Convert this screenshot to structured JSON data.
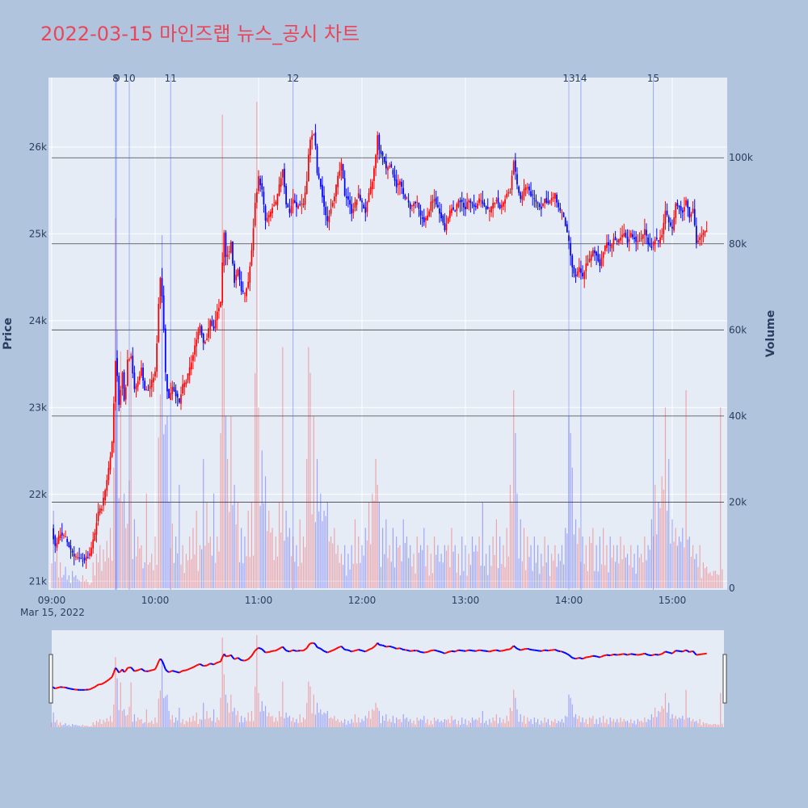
{
  "chart_data": {
    "type": "candlestick",
    "title": "2022-03-15 마인즈랩 뉴스_공시 차트",
    "y_axis_left": {
      "title": "Price",
      "ticks": [
        21000,
        22000,
        23000,
        24000,
        25000,
        26000
      ],
      "tick_labels": [
        "21k",
        "22k",
        "23k",
        "24k",
        "25k",
        "26k"
      ],
      "range": [
        20900,
        26800
      ]
    },
    "y_axis_right": {
      "title": "Volume",
      "ticks": [
        0,
        20000,
        40000,
        60000,
        80000,
        100000
      ],
      "tick_labels": [
        "0",
        "20k",
        "40k",
        "60k",
        "80k",
        "100k"
      ],
      "range": [
        0,
        119000
      ]
    },
    "x_axis": {
      "ticks": [
        "09:00",
        "10:00",
        "11:00",
        "12:00",
        "13:00",
        "14:00",
        "15:00"
      ],
      "tick_minutes": [
        0,
        60,
        120,
        180,
        240,
        300,
        360
      ],
      "date_label": "Mar 15, 2022",
      "range_minutes": [
        0,
        390
      ]
    },
    "news_markers": [
      {
        "label": "8",
        "minute": 37
      },
      {
        "label": "9",
        "minute": 37.5
      },
      {
        "label": "10",
        "minute": 45
      },
      {
        "label": "11",
        "minute": 69
      },
      {
        "label": "12",
        "minute": 140
      },
      {
        "label": "13",
        "minute": 300
      },
      {
        "label": "14",
        "minute": 307
      },
      {
        "label": "15",
        "minute": 349
      }
    ],
    "price_path": [
      [
        0,
        21600
      ],
      [
        2,
        21400
      ],
      [
        5,
        21550
      ],
      [
        8,
        21500
      ],
      [
        10,
        21400
      ],
      [
        13,
        21300
      ],
      [
        16,
        21250
      ],
      [
        19,
        21250
      ],
      [
        22,
        21300
      ],
      [
        25,
        21550
      ],
      [
        27,
        21800
      ],
      [
        29,
        21850
      ],
      [
        31,
        22050
      ],
      [
        33,
        22300
      ],
      [
        35,
        22600
      ],
      [
        36,
        23050
      ],
      [
        37,
        23550
      ],
      [
        38,
        23350
      ],
      [
        39,
        23050
      ],
      [
        40,
        23200
      ],
      [
        41,
        23400
      ],
      [
        42,
        23100
      ],
      [
        43,
        23250
      ],
      [
        44,
        23550
      ],
      [
        46,
        23600
      ],
      [
        48,
        23200
      ],
      [
        50,
        23300
      ],
      [
        52,
        23450
      ],
      [
        54,
        23200
      ],
      [
        56,
        23200
      ],
      [
        58,
        23300
      ],
      [
        60,
        23400
      ],
      [
        61,
        23750
      ],
      [
        62,
        24200
      ],
      [
        63,
        24500
      ],
      [
        64,
        24300
      ],
      [
        65,
        23900
      ],
      [
        66,
        23400
      ],
      [
        67,
        23200
      ],
      [
        68,
        23100
      ],
      [
        70,
        23250
      ],
      [
        72,
        23150
      ],
      [
        74,
        23050
      ],
      [
        76,
        23250
      ],
      [
        78,
        23300
      ],
      [
        80,
        23450
      ],
      [
        82,
        23600
      ],
      [
        84,
        23800
      ],
      [
        86,
        23950
      ],
      [
        88,
        23750
      ],
      [
        90,
        23800
      ],
      [
        92,
        24000
      ],
      [
        94,
        23900
      ],
      [
        96,
        24100
      ],
      [
        98,
        24200
      ],
      [
        99,
        24650
      ],
      [
        100,
        25000
      ],
      [
        101,
        24750
      ],
      [
        103,
        24800
      ],
      [
        104,
        24900
      ],
      [
        105,
        24650
      ],
      [
        106,
        24450
      ],
      [
        108,
        24600
      ],
      [
        110,
        24350
      ],
      [
        112,
        24300
      ],
      [
        114,
        24450
      ],
      [
        116,
        24800
      ],
      [
        118,
        25350
      ],
      [
        120,
        25650
      ],
      [
        122,
        25500
      ],
      [
        124,
        25150
      ],
      [
        126,
        25200
      ],
      [
        128,
        25300
      ],
      [
        130,
        25350
      ],
      [
        132,
        25550
      ],
      [
        134,
        25750
      ],
      [
        136,
        25350
      ],
      [
        138,
        25250
      ],
      [
        140,
        25400
      ],
      [
        142,
        25300
      ],
      [
        144,
        25350
      ],
      [
        146,
        25350
      ],
      [
        148,
        25600
      ],
      [
        149,
        25900
      ],
      [
        150,
        26100
      ],
      [
        152,
        26150
      ],
      [
        153,
        26000
      ],
      [
        154,
        25700
      ],
      [
        156,
        25550
      ],
      [
        158,
        25300
      ],
      [
        160,
        25150
      ],
      [
        162,
        25300
      ],
      [
        164,
        25450
      ],
      [
        166,
        25650
      ],
      [
        168,
        25800
      ],
      [
        170,
        25450
      ],
      [
        172,
        25400
      ],
      [
        174,
        25250
      ],
      [
        176,
        25350
      ],
      [
        178,
        25450
      ],
      [
        180,
        25350
      ],
      [
        182,
        25250
      ],
      [
        184,
        25450
      ],
      [
        186,
        25600
      ],
      [
        188,
        25900
      ],
      [
        189,
        26150
      ],
      [
        190,
        25950
      ],
      [
        192,
        25900
      ],
      [
        194,
        25750
      ],
      [
        196,
        25800
      ],
      [
        198,
        25700
      ],
      [
        200,
        25550
      ],
      [
        202,
        25600
      ],
      [
        204,
        25450
      ],
      [
        206,
        25400
      ],
      [
        208,
        25300
      ],
      [
        210,
        25350
      ],
      [
        212,
        25350
      ],
      [
        214,
        25200
      ],
      [
        216,
        25150
      ],
      [
        218,
        25200
      ],
      [
        220,
        25350
      ],
      [
        222,
        25400
      ],
      [
        224,
        25300
      ],
      [
        226,
        25200
      ],
      [
        228,
        25050
      ],
      [
        230,
        25200
      ],
      [
        232,
        25300
      ],
      [
        234,
        25250
      ],
      [
        236,
        25400
      ],
      [
        238,
        25350
      ],
      [
        240,
        25300
      ],
      [
        242,
        25400
      ],
      [
        244,
        25350
      ],
      [
        246,
        25300
      ],
      [
        248,
        25400
      ],
      [
        250,
        25350
      ],
      [
        252,
        25300
      ],
      [
        254,
        25250
      ],
      [
        256,
        25350
      ],
      [
        258,
        25400
      ],
      [
        260,
        25300
      ],
      [
        262,
        25350
      ],
      [
        264,
        25450
      ],
      [
        266,
        25500
      ],
      [
        268,
        25850
      ],
      [
        270,
        25550
      ],
      [
        272,
        25400
      ],
      [
        274,
        25500
      ],
      [
        276,
        25550
      ],
      [
        278,
        25450
      ],
      [
        280,
        25400
      ],
      [
        282,
        25350
      ],
      [
        284,
        25300
      ],
      [
        286,
        25400
      ],
      [
        288,
        25350
      ],
      [
        290,
        25400
      ],
      [
        292,
        25450
      ],
      [
        294,
        25300
      ],
      [
        296,
        25250
      ],
      [
        298,
        25100
      ],
      [
        300,
        24900
      ],
      [
        302,
        24600
      ],
      [
        304,
        24500
      ],
      [
        306,
        24600
      ],
      [
        308,
        24500
      ],
      [
        310,
        24650
      ],
      [
        312,
        24700
      ],
      [
        314,
        24800
      ],
      [
        316,
        24750
      ],
      [
        318,
        24650
      ],
      [
        320,
        24800
      ],
      [
        322,
        24900
      ],
      [
        324,
        24850
      ],
      [
        326,
        24950
      ],
      [
        328,
        24900
      ],
      [
        330,
        24950
      ],
      [
        332,
        25000
      ],
      [
        334,
        24900
      ],
      [
        336,
        25000
      ],
      [
        338,
        24950
      ],
      [
        340,
        24900
      ],
      [
        342,
        24950
      ],
      [
        344,
        25050
      ],
      [
        346,
        24900
      ],
      [
        348,
        24850
      ],
      [
        350,
        24950
      ],
      [
        352,
        24900
      ],
      [
        354,
        25000
      ],
      [
        356,
        25250
      ],
      [
        358,
        25150
      ],
      [
        360,
        25050
      ],
      [
        362,
        25350
      ],
      [
        364,
        25300
      ],
      [
        366,
        25250
      ],
      [
        368,
        25400
      ],
      [
        370,
        25200
      ],
      [
        372,
        25300
      ],
      [
        374,
        24900
      ],
      [
        376,
        24950
      ],
      [
        378,
        25000
      ],
      [
        380,
        25050
      ]
    ],
    "volume_peaks": [
      [
        1,
        18
      ],
      [
        3,
        9
      ],
      [
        5,
        6
      ],
      [
        8,
        5
      ],
      [
        10,
        3
      ],
      [
        12,
        4
      ],
      [
        14,
        3
      ],
      [
        18,
        3
      ],
      [
        20,
        2
      ],
      [
        24,
        6
      ],
      [
        26,
        8
      ],
      [
        28,
        10
      ],
      [
        30,
        9
      ],
      [
        32,
        11
      ],
      [
        34,
        14
      ],
      [
        36,
        28
      ],
      [
        37,
        86
      ],
      [
        38,
        60
      ],
      [
        40,
        55
      ],
      [
        42,
        22
      ],
      [
        44,
        15
      ],
      [
        45,
        25
      ],
      [
        46,
        55
      ],
      [
        48,
        16
      ],
      [
        50,
        12
      ],
      [
        52,
        10
      ],
      [
        55,
        22
      ],
      [
        58,
        8
      ],
      [
        60,
        12
      ],
      [
        62,
        35
      ],
      [
        63,
        45
      ],
      [
        64,
        82
      ],
      [
        66,
        38
      ],
      [
        67,
        40
      ],
      [
        68,
        20
      ],
      [
        70,
        15
      ],
      [
        72,
        12
      ],
      [
        74,
        24
      ],
      [
        76,
        10
      ],
      [
        78,
        8
      ],
      [
        80,
        12
      ],
      [
        82,
        14
      ],
      [
        84,
        18
      ],
      [
        86,
        10
      ],
      [
        88,
        30
      ],
      [
        90,
        20
      ],
      [
        92,
        12
      ],
      [
        94,
        22
      ],
      [
        96,
        12
      ],
      [
        98,
        36
      ],
      [
        99,
        110
      ],
      [
        100,
        65
      ],
      [
        101,
        40
      ],
      [
        102,
        30
      ],
      [
        104,
        40
      ],
      [
        106,
        24
      ],
      [
        108,
        20
      ],
      [
        110,
        14
      ],
      [
        112,
        12
      ],
      [
        114,
        18
      ],
      [
        116,
        20
      ],
      [
        118,
        50
      ],
      [
        119,
        113
      ],
      [
        120,
        42
      ],
      [
        122,
        32
      ],
      [
        124,
        26
      ],
      [
        126,
        18
      ],
      [
        128,
        14
      ],
      [
        130,
        12
      ],
      [
        132,
        20
      ],
      [
        134,
        56
      ],
      [
        136,
        18
      ],
      [
        138,
        14
      ],
      [
        140,
        12
      ],
      [
        142,
        10
      ],
      [
        144,
        16
      ],
      [
        146,
        12
      ],
      [
        148,
        30
      ],
      [
        149,
        56
      ],
      [
        150,
        50
      ],
      [
        152,
        40
      ],
      [
        154,
        30
      ],
      [
        156,
        22
      ],
      [
        158,
        18
      ],
      [
        160,
        20
      ],
      [
        162,
        12
      ],
      [
        164,
        14
      ],
      [
        166,
        10
      ],
      [
        168,
        8
      ],
      [
        170,
        10
      ],
      [
        172,
        8
      ],
      [
        174,
        10
      ],
      [
        176,
        16
      ],
      [
        178,
        12
      ],
      [
        180,
        10
      ],
      [
        182,
        14
      ],
      [
        184,
        20
      ],
      [
        186,
        22
      ],
      [
        188,
        30
      ],
      [
        189,
        24
      ],
      [
        190,
        20
      ],
      [
        192,
        14
      ],
      [
        194,
        16
      ],
      [
        196,
        10
      ],
      [
        198,
        14
      ],
      [
        200,
        12
      ],
      [
        202,
        10
      ],
      [
        204,
        16
      ],
      [
        206,
        12
      ],
      [
        208,
        10
      ],
      [
        210,
        8
      ],
      [
        212,
        12
      ],
      [
        214,
        10
      ],
      [
        216,
        14
      ],
      [
        218,
        10
      ],
      [
        220,
        8
      ],
      [
        222,
        12
      ],
      [
        224,
        10
      ],
      [
        226,
        8
      ],
      [
        228,
        10
      ],
      [
        230,
        10
      ],
      [
        232,
        14
      ],
      [
        234,
        10
      ],
      [
        236,
        8
      ],
      [
        238,
        12
      ],
      [
        240,
        10
      ],
      [
        242,
        8
      ],
      [
        244,
        12
      ],
      [
        246,
        10
      ],
      [
        248,
        12
      ],
      [
        250,
        20
      ],
      [
        252,
        8
      ],
      [
        254,
        10
      ],
      [
        256,
        12
      ],
      [
        258,
        16
      ],
      [
        260,
        12
      ],
      [
        262,
        10
      ],
      [
        264,
        14
      ],
      [
        266,
        24
      ],
      [
        268,
        46
      ],
      [
        269,
        36
      ],
      [
        270,
        22
      ],
      [
        272,
        16
      ],
      [
        274,
        14
      ],
      [
        276,
        12
      ],
      [
        278,
        10
      ],
      [
        280,
        12
      ],
      [
        282,
        10
      ],
      [
        284,
        8
      ],
      [
        286,
        12
      ],
      [
        288,
        10
      ],
      [
        290,
        8
      ],
      [
        292,
        10
      ],
      [
        294,
        8
      ],
      [
        296,
        10
      ],
      [
        298,
        14
      ],
      [
        300,
        40
      ],
      [
        301,
        36
      ],
      [
        302,
        28
      ],
      [
        304,
        16
      ],
      [
        306,
        14
      ],
      [
        308,
        12
      ],
      [
        310,
        10
      ],
      [
        312,
        12
      ],
      [
        314,
        14
      ],
      [
        316,
        10
      ],
      [
        318,
        12
      ],
      [
        320,
        14
      ],
      [
        322,
        10
      ],
      [
        324,
        12
      ],
      [
        326,
        10
      ],
      [
        328,
        10
      ],
      [
        330,
        12
      ],
      [
        332,
        10
      ],
      [
        334,
        8
      ],
      [
        336,
        10
      ],
      [
        338,
        8
      ],
      [
        340,
        10
      ],
      [
        342,
        8
      ],
      [
        344,
        12
      ],
      [
        346,
        10
      ],
      [
        348,
        16
      ],
      [
        350,
        24
      ],
      [
        352,
        20
      ],
      [
        354,
        26
      ],
      [
        356,
        42
      ],
      [
        358,
        30
      ],
      [
        360,
        16
      ],
      [
        362,
        14
      ],
      [
        364,
        12
      ],
      [
        366,
        14
      ],
      [
        368,
        46
      ],
      [
        370,
        12
      ],
      [
        372,
        10
      ],
      [
        374,
        8
      ],
      [
        376,
        10
      ],
      [
        378,
        6
      ],
      [
        380,
        5
      ],
      [
        388,
        42
      ]
    ],
    "colors": {
      "up": "#ff0000",
      "down": "#0000ff",
      "title": "#e8475b",
      "plot_bg": "#e5ecf6",
      "paper_bg": "#b0c4de",
      "grid": "#ffffff",
      "hline": "#444444"
    }
  }
}
